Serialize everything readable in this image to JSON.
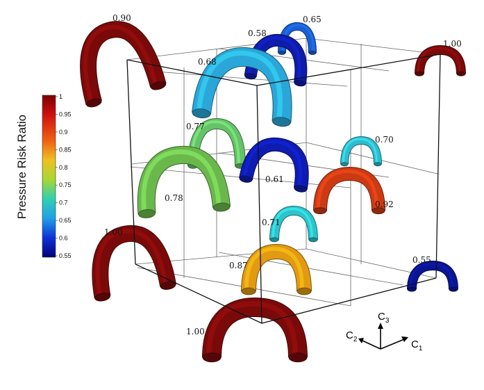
{
  "colorbar": {
    "title": "Pressure Risk Ratio",
    "ticks": [
      "1",
      "0.95",
      "0.9",
      "0.85",
      "0.8",
      "0.75",
      "0.7",
      "0.65",
      "0.6",
      "0.55"
    ]
  },
  "axes": {
    "c3": {
      "main": "C",
      "sub": "3"
    },
    "c2": {
      "main": "C",
      "sub": "2"
    },
    "c1": {
      "main": "C",
      "sub": "1"
    }
  },
  "arches": [
    {
      "id": "corner-top-left",
      "value": "0.90",
      "color": "#7a0a0a"
    },
    {
      "id": "top-back-small",
      "value": "0.65",
      "color": "#1a5fd6"
    },
    {
      "id": "top-mid",
      "value": "0.58",
      "color": "#0f1ca8"
    },
    {
      "id": "corner-top-right",
      "value": "1.00",
      "color": "#7a0a0a"
    },
    {
      "id": "upper-center",
      "value": "0.68",
      "color": "#2aa7d8"
    },
    {
      "id": "mid-left-upper",
      "value": "0.77",
      "color": "#66c268"
    },
    {
      "id": "mid-right-small",
      "value": "0.70",
      "color": "#2fbcd0"
    },
    {
      "id": "center",
      "value": "0.61",
      "color": "#0e1cb0"
    },
    {
      "id": "mid-left-large",
      "value": "0.78",
      "color": "#6ab84c"
    },
    {
      "id": "mid-right-red",
      "value": "0.92",
      "color": "#cc3a14"
    },
    {
      "id": "lower-center-cyan",
      "value": "0.71",
      "color": "#2ec4cc"
    },
    {
      "id": "corner-bottom-left",
      "value": "1.00",
      "color": "#7a0a0a"
    },
    {
      "id": "lower-center-orange",
      "value": "0.87",
      "color": "#e29a12"
    },
    {
      "id": "corner-bottom-right",
      "value": "0.55",
      "color": "#0a1590"
    },
    {
      "id": "corner-front-bottom",
      "value": "1.00",
      "color": "#7a0a0a"
    }
  ]
}
